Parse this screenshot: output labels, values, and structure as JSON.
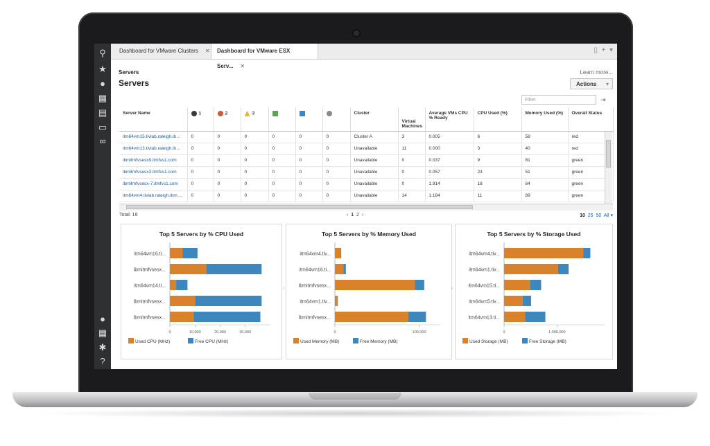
{
  "tabs": [
    {
      "label": "Dashboard for VMware Clusters",
      "active": false
    },
    {
      "label": "Dashboard for VMware ESX Serv...",
      "active": true
    }
  ],
  "breadcrumb": "Servers",
  "page_title": "Servers",
  "learn_more": "Learn more...",
  "actions_label": "Actions",
  "filter_placeholder": "Filter",
  "table": {
    "columns": [
      "Server Name",
      "1",
      "2",
      "3",
      "",
      "",
      "",
      "Cluster",
      "Virtual Machines",
      "Average VMs CPU % Ready",
      "CPU Used (%)",
      "Memory Used (%)",
      "Overall Status"
    ],
    "rows": [
      [
        "itm64vm15.tivlab.raleigh.ibm....",
        "0",
        "0",
        "0",
        "0",
        "0",
        "0",
        "Cluster A",
        "3",
        "0.005",
        "6",
        "58",
        "red"
      ],
      [
        "itm64vm13.tivlab.raleigh.ibm....",
        "0",
        "0",
        "0",
        "0",
        "0",
        "0",
        "Unavailable",
        "11",
        "0.000",
        "3",
        "40",
        "red"
      ],
      [
        "ibmitmfvsesx9.itmfvs1.com",
        "0",
        "0",
        "0",
        "0",
        "0",
        "0",
        "Unavailable",
        "0",
        "0.037",
        "9",
        "81",
        "green"
      ],
      [
        "ibmitmfvsesx3.itmfvs1.com",
        "0",
        "0",
        "0",
        "0",
        "0",
        "0",
        "Unavailable",
        "0",
        "0.057",
        "23",
        "51",
        "green"
      ],
      [
        "ibmitmfvsesx-7.itmfvs1.com",
        "0",
        "0",
        "0",
        "0",
        "0",
        "0",
        "Unavailable",
        "0",
        "1.914",
        "18",
        "64",
        "green"
      ],
      [
        "itm64vm4.tivlab.raleigh.ibm.com",
        "0",
        "0",
        "0",
        "0",
        "0",
        "0",
        "Unavailable",
        "14",
        "1.184",
        "11",
        "89",
        "green"
      ]
    ]
  },
  "total_label": "Total: 16",
  "pager": {
    "prev": "‹",
    "pages": [
      "1",
      "2"
    ],
    "next": "›"
  },
  "page_sizes": [
    "10",
    "25",
    "50",
    "All"
  ],
  "colors": {
    "orange": "#d9822b",
    "blue": "#3e86be",
    "sev_critical": "#3a3a3a",
    "sev_major": "#d35a2d",
    "sev_warning": "#f0b323"
  },
  "chart_data": [
    {
      "type": "bar",
      "orientation": "horizontal",
      "stacked": true,
      "title": "Top 5 Servers by % CPU Used",
      "categories": [
        "itm64vm16.ti...",
        "ibmitmfvsesx...",
        "itm64vm14.ti...",
        "ibmitmfvsesx...",
        "ibmitmfvsesx..."
      ],
      "series": [
        {
          "name": "Used CPU (MHz)",
          "values": [
            5000,
            14500,
            2500,
            10000,
            9500
          ]
        },
        {
          "name": "Free CPU (MHz)",
          "values": [
            6000,
            22000,
            4500,
            26500,
            26500
          ]
        }
      ],
      "ticks": [
        "0",
        "10,000",
        "20,000",
        "30,000"
      ],
      "tick_values": [
        0,
        10000,
        20000,
        30000
      ],
      "xlim": [
        0,
        40000
      ]
    },
    {
      "type": "bar",
      "orientation": "horizontal",
      "stacked": true,
      "title": "Top 5 Servers by % Memory Used",
      "categories": [
        "itm64vm4.tiv...",
        "itm64vm16.ti...",
        "ibmitmfvsesx...",
        "itm64vm1.tiv...",
        "ibmitmfvsesx..."
      ],
      "series": [
        {
          "name": "Used Memory (MB)",
          "values": [
            7000,
            10000,
            95000,
            3000,
            87000
          ]
        },
        {
          "name": "Free Memory (MB)",
          "values": [
            500,
            3000,
            11000,
            500,
            21000
          ]
        }
      ],
      "ticks": [
        "0",
        "100,000"
      ],
      "tick_values": [
        0,
        100000
      ],
      "xlim": [
        0,
        125000
      ]
    },
    {
      "type": "bar",
      "orientation": "horizontal",
      "stacked": true,
      "title": "Top 5 Servers by % Storage Used",
      "categories": [
        "itm64vm4.tiv...",
        "itm64vm1.tiv...",
        "itm64vm15.ti...",
        "itm64vm5.tiv...",
        "itm64vm13.ti..."
      ],
      "series": [
        {
          "name": "Used Storage (MB)",
          "values": [
            1500000,
            1020000,
            490000,
            350000,
            400000
          ]
        },
        {
          "name": "Free Storage (MB)",
          "values": [
            130000,
            200000,
            210000,
            160000,
            380000
          ]
        }
      ],
      "ticks": [
        "0",
        "1,000,000"
      ],
      "tick_values": [
        0,
        1000000
      ],
      "xlim": [
        0,
        1900000
      ]
    }
  ]
}
